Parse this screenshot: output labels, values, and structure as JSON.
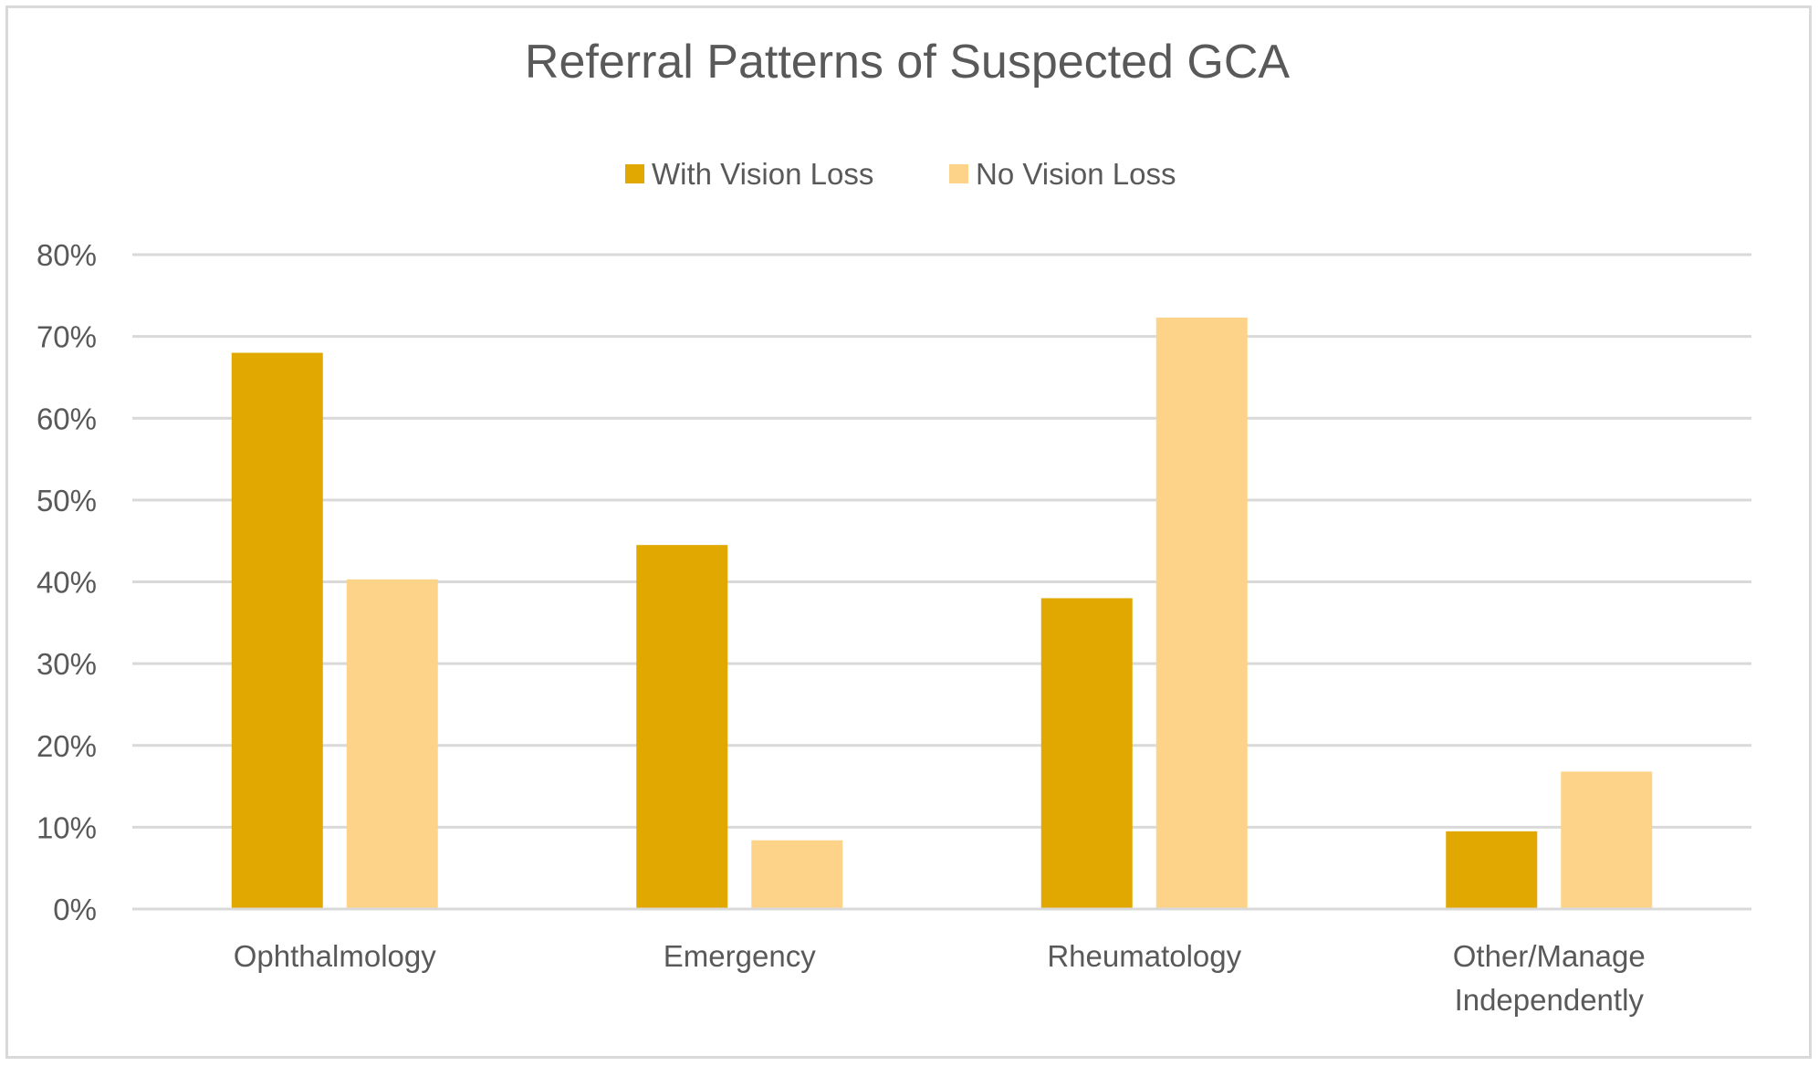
{
  "chart_data": {
    "type": "bar",
    "title": "Referral Patterns of Suspected GCA",
    "xlabel": "",
    "ylabel": "",
    "ylim": [
      0,
      0.8
    ],
    "y_ticks": [
      {
        "value": 0.0,
        "label": "0%"
      },
      {
        "value": 0.1,
        "label": "10%"
      },
      {
        "value": 0.2,
        "label": "20%"
      },
      {
        "value": 0.3,
        "label": "30%"
      },
      {
        "value": 0.4,
        "label": "40%"
      },
      {
        "value": 0.5,
        "label": "50%"
      },
      {
        "value": 0.6,
        "label": "60%"
      },
      {
        "value": 0.7,
        "label": "70%"
      },
      {
        "value": 0.8,
        "label": "80%"
      }
    ],
    "categories": [
      [
        "Ophthalmology"
      ],
      [
        "Emergency"
      ],
      [
        "Rheumatology"
      ],
      [
        "Other/Manage",
        "Independently"
      ]
    ],
    "series": [
      {
        "name": "With Vision Loss",
        "color": "#e0a800",
        "values": [
          0.68,
          0.445,
          0.38,
          0.095
        ]
      },
      {
        "name": "No Vision Loss",
        "color": "#fdd389",
        "values": [
          0.403,
          0.084,
          0.723,
          0.168
        ]
      }
    ],
    "grid": true,
    "gridline_color": "#d9d9d9",
    "legend_position": "top-center"
  }
}
